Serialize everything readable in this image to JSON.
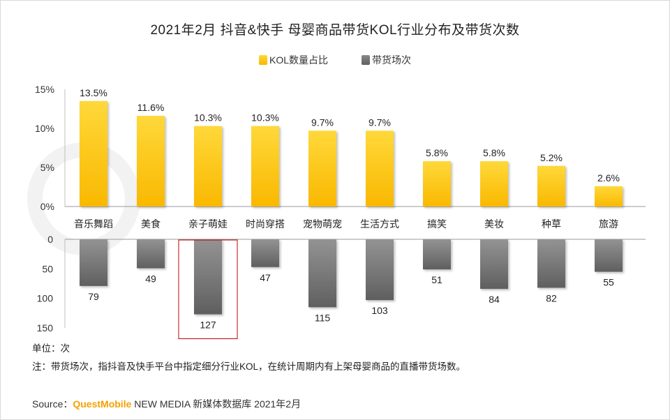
{
  "title": "2021年2月 抖音&快手 母婴商品带货KOL行业分布及带货次数",
  "legend": {
    "kol": "KOL数量占比",
    "sessions": "带货场次"
  },
  "unit_text": "单位：次",
  "note_text": "注：带货场次，指抖音及快手平台中指定细分行业KOL，在统计周期内有上架母婴商品的直播带货场数。",
  "source": {
    "prefix": "Source：",
    "brand": "QuestMobile",
    "rest": " NEW MEDIA 新媒体数据库 2021年2月"
  },
  "colors": {
    "kol": "#fcc30b",
    "sessions": "#6e6e6e",
    "highlight": "#c00000"
  },
  "chart_data": [
    {
      "type": "bar",
      "name": "kol_share",
      "title": "KOL数量占比",
      "categories": [
        "音乐舞蹈",
        "美食",
        "亲子萌娃",
        "时尚穿搭",
        "宠物萌宠",
        "生活方式",
        "搞笑",
        "美妆",
        "种草",
        "旅游"
      ],
      "values": [
        13.5,
        11.6,
        10.3,
        10.3,
        9.7,
        9.7,
        5.8,
        5.8,
        5.2,
        2.6
      ],
      "labels": [
        "13.5%",
        "11.6%",
        "10.3%",
        "10.3%",
        "9.7%",
        "9.7%",
        "5.8%",
        "5.8%",
        "5.2%",
        "2.6%"
      ],
      "ylim": [
        0,
        15
      ],
      "ticks": [
        "0%",
        "5%",
        "10%",
        "15%"
      ]
    },
    {
      "type": "bar",
      "name": "sessions",
      "title": "带货场次",
      "orientation": "downward",
      "categories": [
        "音乐舞蹈",
        "美食",
        "亲子萌娃",
        "时尚穿搭",
        "宠物萌宠",
        "生活方式",
        "搞笑",
        "美妆",
        "种草",
        "旅游"
      ],
      "values": [
        79,
        49,
        127,
        47,
        115,
        103,
        51,
        84,
        82,
        55
      ],
      "ylim": [
        0,
        150
      ],
      "ticks": [
        "0",
        "50",
        "100",
        "150"
      ],
      "highlight": "亲子萌娃"
    }
  ]
}
